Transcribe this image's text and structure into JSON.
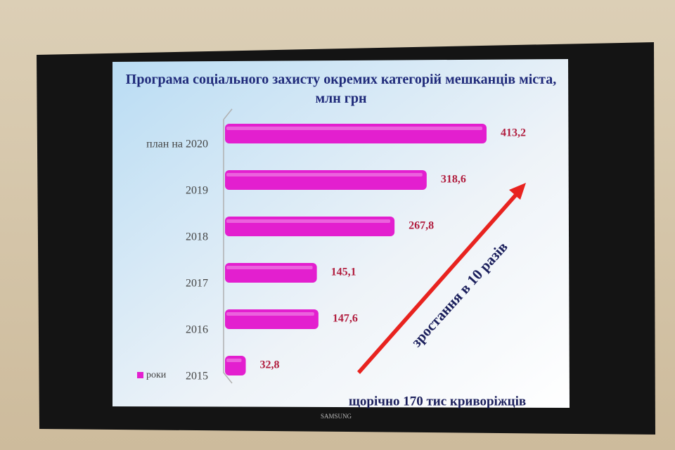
{
  "chart_data": {
    "type": "bar",
    "orientation": "horizontal",
    "title": "Програма соціального захисту окремих категорій мешканців міста, млн грн",
    "categories": [
      "план на 2020",
      "2019",
      "2018",
      "2017",
      "2016",
      "2015"
    ],
    "series": [
      {
        "name": "роки",
        "color": "#e31fcf",
        "values": [
          413.2,
          318.6,
          267.8,
          145.1,
          147.6,
          32.8
        ],
        "value_labels": [
          "413,2",
          "318,6",
          "267,8",
          "145,1",
          "147,6",
          "32,8"
        ]
      }
    ],
    "legend": "bottom-left",
    "annotations": [
      "зростання в 10 разів",
      "щорічно 170 тис криворіжців"
    ]
  },
  "device": {
    "brand": "SAMSUNG"
  }
}
